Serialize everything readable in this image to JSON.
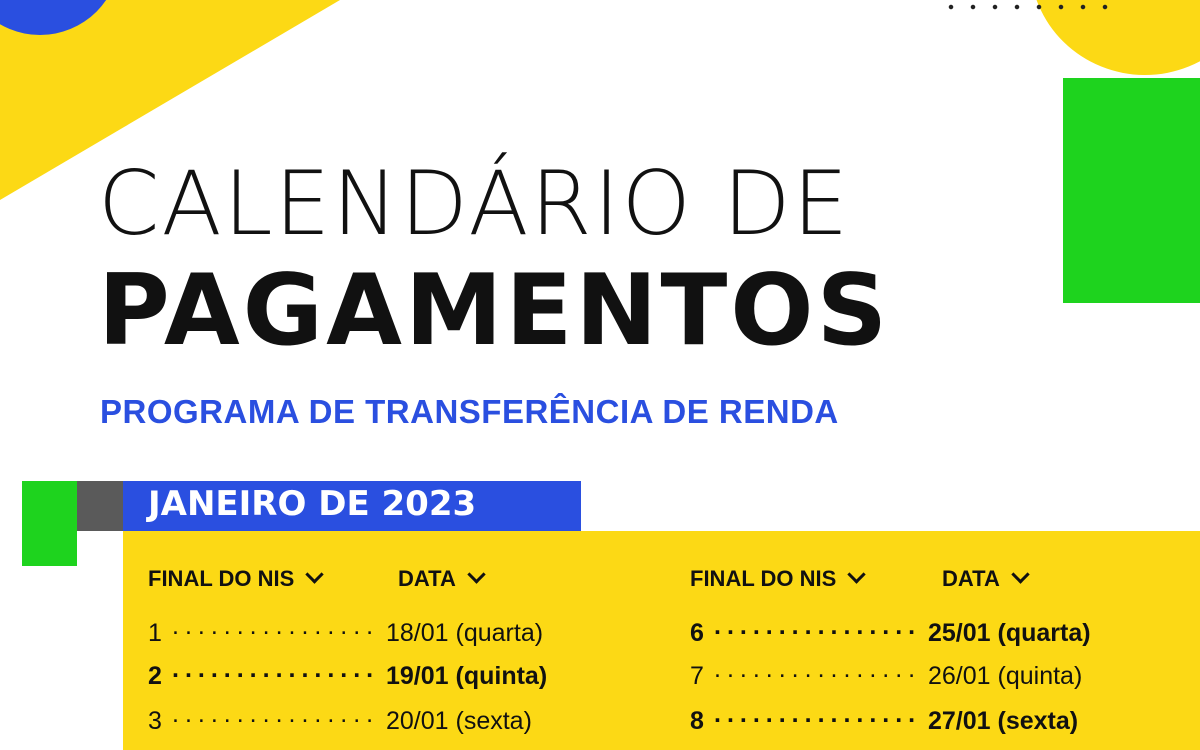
{
  "title": {
    "line1": "CALENDÁRIO DE",
    "line2": "PAGAMENTOS",
    "subtitle": "PROGRAMA DE TRANSFERÊNCIA DE RENDA"
  },
  "month": "JANEIRO DE 2023",
  "headers": {
    "left_nis": "FINAL DO NIS",
    "left_data": "DATA",
    "right_nis": "FINAL DO NIS",
    "right_data": "DATA"
  },
  "left_rows": [
    {
      "nis": "1",
      "dots": "................",
      "date": "18/01 (quarta)"
    },
    {
      "nis": "2",
      "dots": "................",
      "date": "19/01 (quinta)"
    },
    {
      "nis": "3",
      "dots": "................",
      "date": "20/01 (sexta)"
    }
  ],
  "right_rows": [
    {
      "nis": "6",
      "dots": "................",
      "date": "25/01 (quarta)"
    },
    {
      "nis": "7",
      "dots": "................",
      "date": "26/01 (quinta)"
    },
    {
      "nis": "8",
      "dots": "................",
      "date": "27/01 (sexta)"
    }
  ],
  "colors": {
    "yellow": "#fcd915",
    "blue": "#2a4fe0",
    "green": "#1ed31e",
    "grey": "#5a5a5a"
  }
}
